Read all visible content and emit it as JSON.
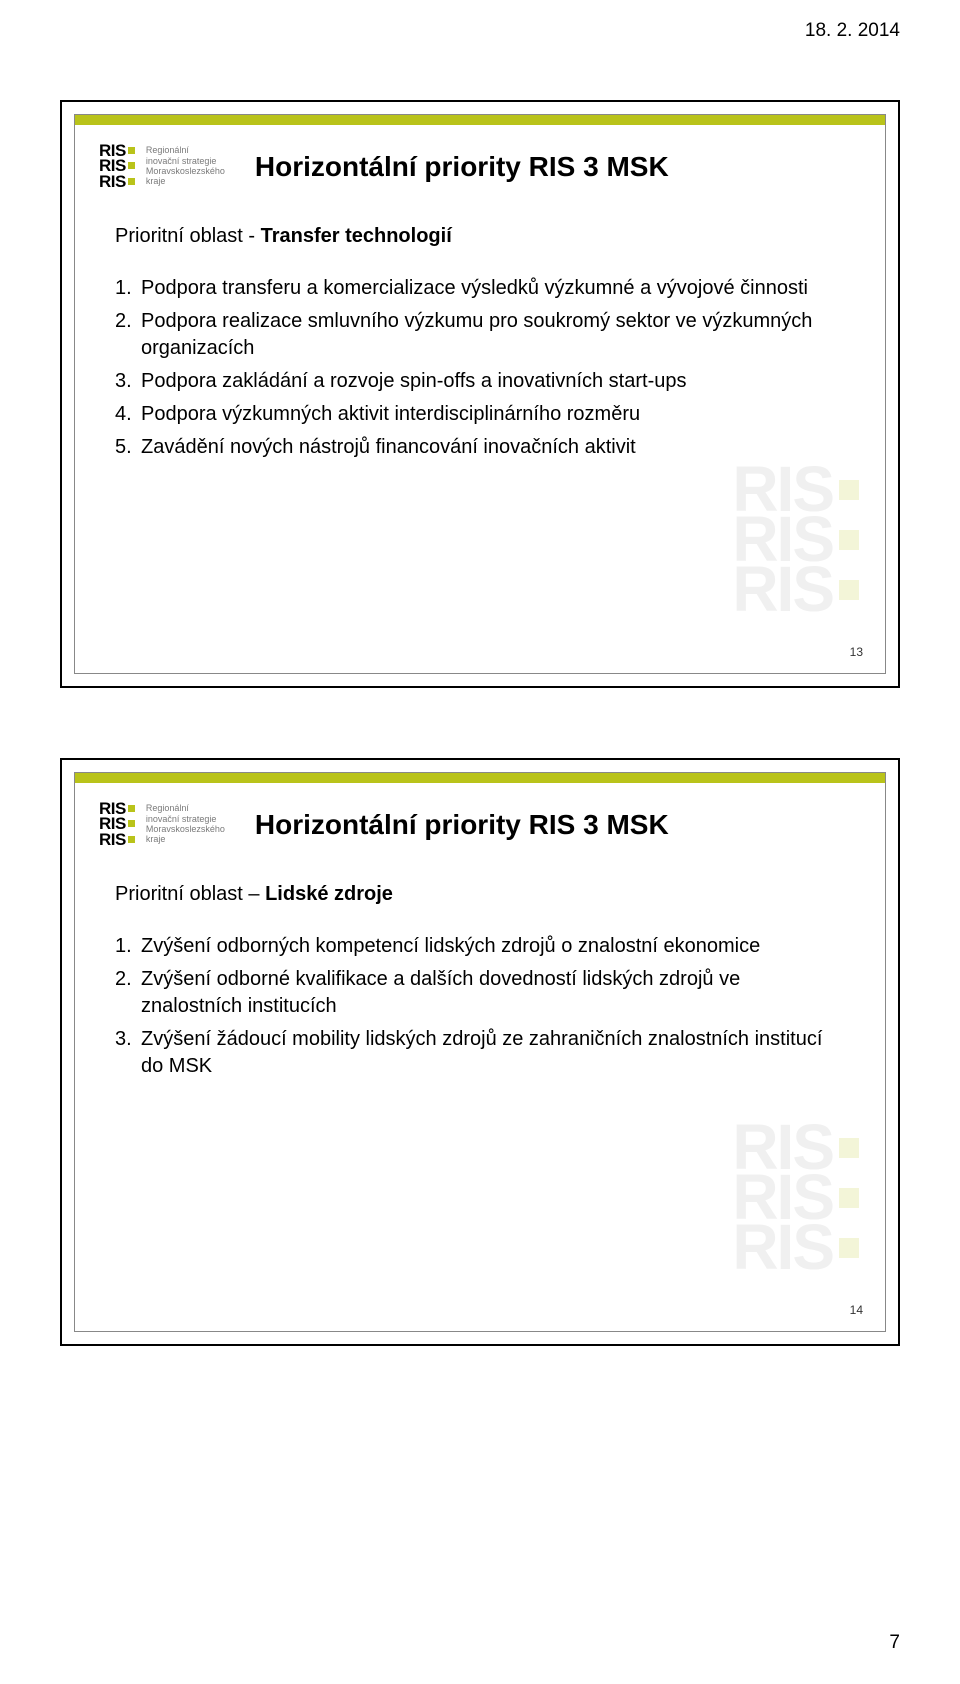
{
  "page": {
    "date": "18. 2. 2014",
    "number": "7"
  },
  "logo": {
    "text": "RIS",
    "sub_line1": "Regionální",
    "sub_line2": "inovační strategie",
    "sub_line3": "Moravskoslezského",
    "sub_line4": "kraje"
  },
  "colors": {
    "accent": "#b9c31a",
    "watermark": "#f0f0f0",
    "watermark_sq": "#f3f5d8"
  },
  "slide1": {
    "title": "Horizontální priority RIS 3 MSK",
    "subtitle_prefix": "Prioritní oblast - ",
    "subtitle_bold": "Transfer technologií",
    "items": [
      {
        "n": "1.",
        "t": "Podpora transferu a komercializace výsledků výzkumné a vývojové činnosti"
      },
      {
        "n": "2.",
        "t": "Podpora realizace smluvního výzkumu pro soukromý sektor ve výzkumných organizacích"
      },
      {
        "n": "3.",
        "t": "Podpora zakládání a rozvoje spin-offs a inovativních start-ups"
      },
      {
        "n": "4.",
        "t": "Podpora výzkumných aktivit interdisciplinárního rozměru"
      },
      {
        "n": "5.",
        "t": "Zavádění nových nástrojů financování inovačních aktivit"
      }
    ],
    "slide_number": "13"
  },
  "slide2": {
    "title": "Horizontální priority RIS 3 MSK",
    "subtitle_prefix": "Prioritní oblast – ",
    "subtitle_bold": "Lidské zdroje",
    "items": [
      {
        "n": "1.",
        "t": "Zvýšení odborných kompetencí lidských zdrojů o znalostní ekonomice"
      },
      {
        "n": "2.",
        "t": "Zvýšení odborné kvalifikace a dalších dovedností lidských zdrojů ve znalostních institucích"
      },
      {
        "n": "3.",
        "t": "Zvýšení žádoucí mobility lidských zdrojů ze zahraničních znalostních institucí do MSK"
      }
    ],
    "slide_number": "14"
  }
}
